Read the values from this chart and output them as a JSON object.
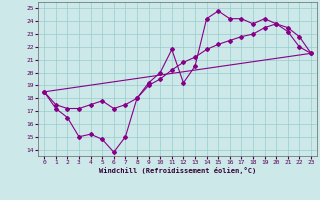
{
  "xlabel": "Windchill (Refroidissement éolien,°C)",
  "xlim": [
    -0.5,
    23.5
  ],
  "ylim": [
    13.5,
    25.5
  ],
  "xticks": [
    0,
    1,
    2,
    3,
    4,
    5,
    6,
    7,
    8,
    9,
    10,
    11,
    12,
    13,
    14,
    15,
    16,
    17,
    18,
    19,
    20,
    21,
    22,
    23
  ],
  "yticks": [
    14,
    15,
    16,
    17,
    18,
    19,
    20,
    21,
    22,
    23,
    24,
    25
  ],
  "bg_color": "#cce8e8",
  "line_color": "#880088",
  "line1_x": [
    0,
    1,
    2,
    3,
    4,
    5,
    6,
    7,
    8,
    9,
    10,
    11,
    12,
    13,
    14,
    15,
    16,
    17,
    18,
    19,
    20,
    21,
    22,
    23
  ],
  "line1_y": [
    18.5,
    17.2,
    16.5,
    15.0,
    15.2,
    14.8,
    13.8,
    15.0,
    18.0,
    19.2,
    20.0,
    21.8,
    19.2,
    20.5,
    24.2,
    24.8,
    24.2,
    24.2,
    23.8,
    24.2,
    23.8,
    23.2,
    22.0,
    21.5
  ],
  "line2_x": [
    0,
    1,
    2,
    3,
    4,
    5,
    6,
    7,
    8,
    9,
    10,
    11,
    12,
    13,
    14,
    15,
    16,
    17,
    18,
    19,
    20,
    21,
    22,
    23
  ],
  "line2_y": [
    18.5,
    17.5,
    17.2,
    17.2,
    17.5,
    17.8,
    17.2,
    17.5,
    18.0,
    19.0,
    19.5,
    20.2,
    20.8,
    21.2,
    21.8,
    22.2,
    22.5,
    22.8,
    23.0,
    23.5,
    23.8,
    23.5,
    22.8,
    21.5
  ],
  "line3_x": [
    0,
    23
  ],
  "line3_y": [
    18.5,
    21.5
  ]
}
